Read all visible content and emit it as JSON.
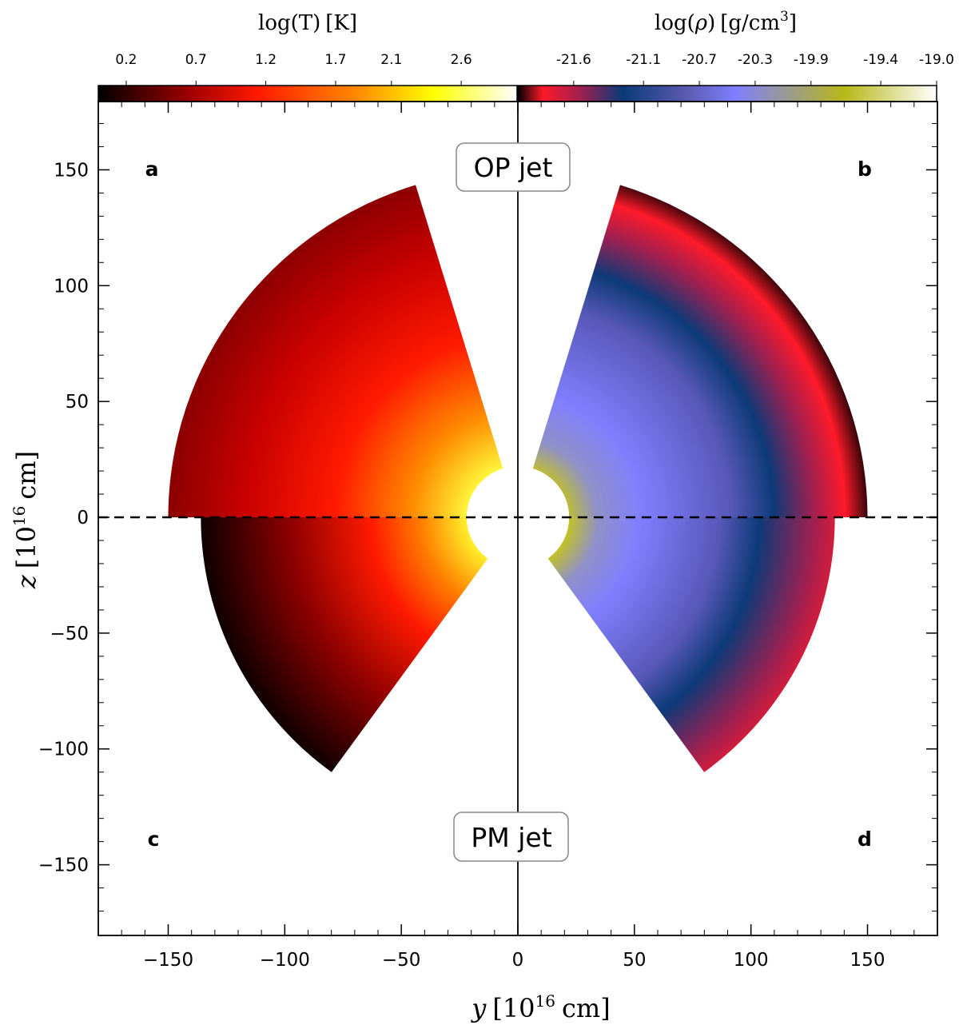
{
  "chart_data": {
    "type": "heatmap",
    "description_free": true,
    "colorbars": [
      {
        "label_html": "log(T) [K]",
        "ticks": [
          "0.2",
          "0.7",
          "1.2",
          "1.7",
          "2.1",
          "2.6"
        ],
        "tick_positions": [
          0.2,
          0.7,
          1.2,
          1.7,
          2.1,
          2.6
        ],
        "range": [
          0.0,
          3.0
        ],
        "colors": [
          "#000000",
          "#c00000",
          "#ff1a00",
          "#ff8000",
          "#ffff00",
          "#ffffff"
        ]
      },
      {
        "label_html": "log(ρ) [g/cm3]",
        "ticks": [
          "-21.6",
          "-21.1",
          "-20.7",
          "-20.3",
          "-19.9",
          "-19.4",
          "-19.0"
        ],
        "tick_positions": [
          -21.6,
          -21.1,
          -20.7,
          -20.3,
          -19.9,
          -19.4,
          -19.0
        ],
        "range": [
          -22.0,
          -19.0
        ],
        "colors": [
          "#000000",
          "#ff1a2a",
          "#a02050",
          "#0a3a78",
          "#5a5ab0",
          "#7f7fff",
          "#b8b818",
          "#ffffff"
        ]
      }
    ],
    "xlabel": "y [10^16 cm]",
    "ylabel": "z [10^16 cm]",
    "xlim": [
      -180,
      180
    ],
    "ylim": [
      -180,
      180
    ],
    "xticks": [
      -150,
      -100,
      -50,
      0,
      50,
      100,
      150
    ],
    "yticks": [
      150,
      100,
      50,
      0,
      -50,
      -100,
      -150
    ],
    "xtick_labels": [
      "−150",
      "−100",
      "−50",
      "0",
      "50",
      "100",
      "150"
    ],
    "ytick_labels": [
      "150",
      "100",
      "50",
      "0",
      "−50",
      "−100",
      "−150"
    ],
    "panels": [
      {
        "letter": "a",
        "quantity": "log(T)",
        "jet": "OP jet",
        "inner_radius": 22,
        "outer_radius": 150,
        "theta_from_pole_deg": [
          17,
          90
        ]
      },
      {
        "letter": "b",
        "quantity": "log(rho)",
        "jet": "OP jet",
        "inner_radius": 22,
        "outer_radius": 150,
        "theta_from_pole_deg": [
          17,
          90
        ]
      },
      {
        "letter": "c",
        "quantity": "log(T)",
        "jet": "PM jet",
        "inner_radius": 22,
        "outer_radius": 136,
        "theta_from_pole_deg": [
          36,
          90
        ]
      },
      {
        "letter": "d",
        "quantity": "log(rho)",
        "jet": "PM jet",
        "inner_radius": 22,
        "outer_radius": 136,
        "theta_from_pole_deg": [
          36,
          90
        ]
      }
    ],
    "annotations": [
      "OP jet",
      "PM jet"
    ],
    "equator_line": "dashed at z = 0"
  },
  "labels": {
    "colorbar_T": "log(T) [K]",
    "colorbar_T_main": "log(T)",
    "colorbar_T_unit": "[K]",
    "colorbar_rho_main": "log(",
    "colorbar_rho_sym": "ρ",
    "colorbar_rho_close": ")",
    "colorbar_rho_unit": "[g/cm",
    "colorbar_rho_exp": "3",
    "colorbar_rho_end": "]",
    "xlabel_var": "y",
    "xlabel_unit_open": "[10",
    "xlabel_exp": "16",
    "xlabel_unit_close": "cm]",
    "ylabel_var": "z",
    "ylabel_unit_open": "[10",
    "ylabel_exp": "16",
    "ylabel_unit_close": "cm]",
    "letter_a": "a",
    "letter_b": "b",
    "letter_c": "c",
    "letter_d": "d",
    "jet_top": "OP jet",
    "jet_bottom": "PM jet"
  }
}
